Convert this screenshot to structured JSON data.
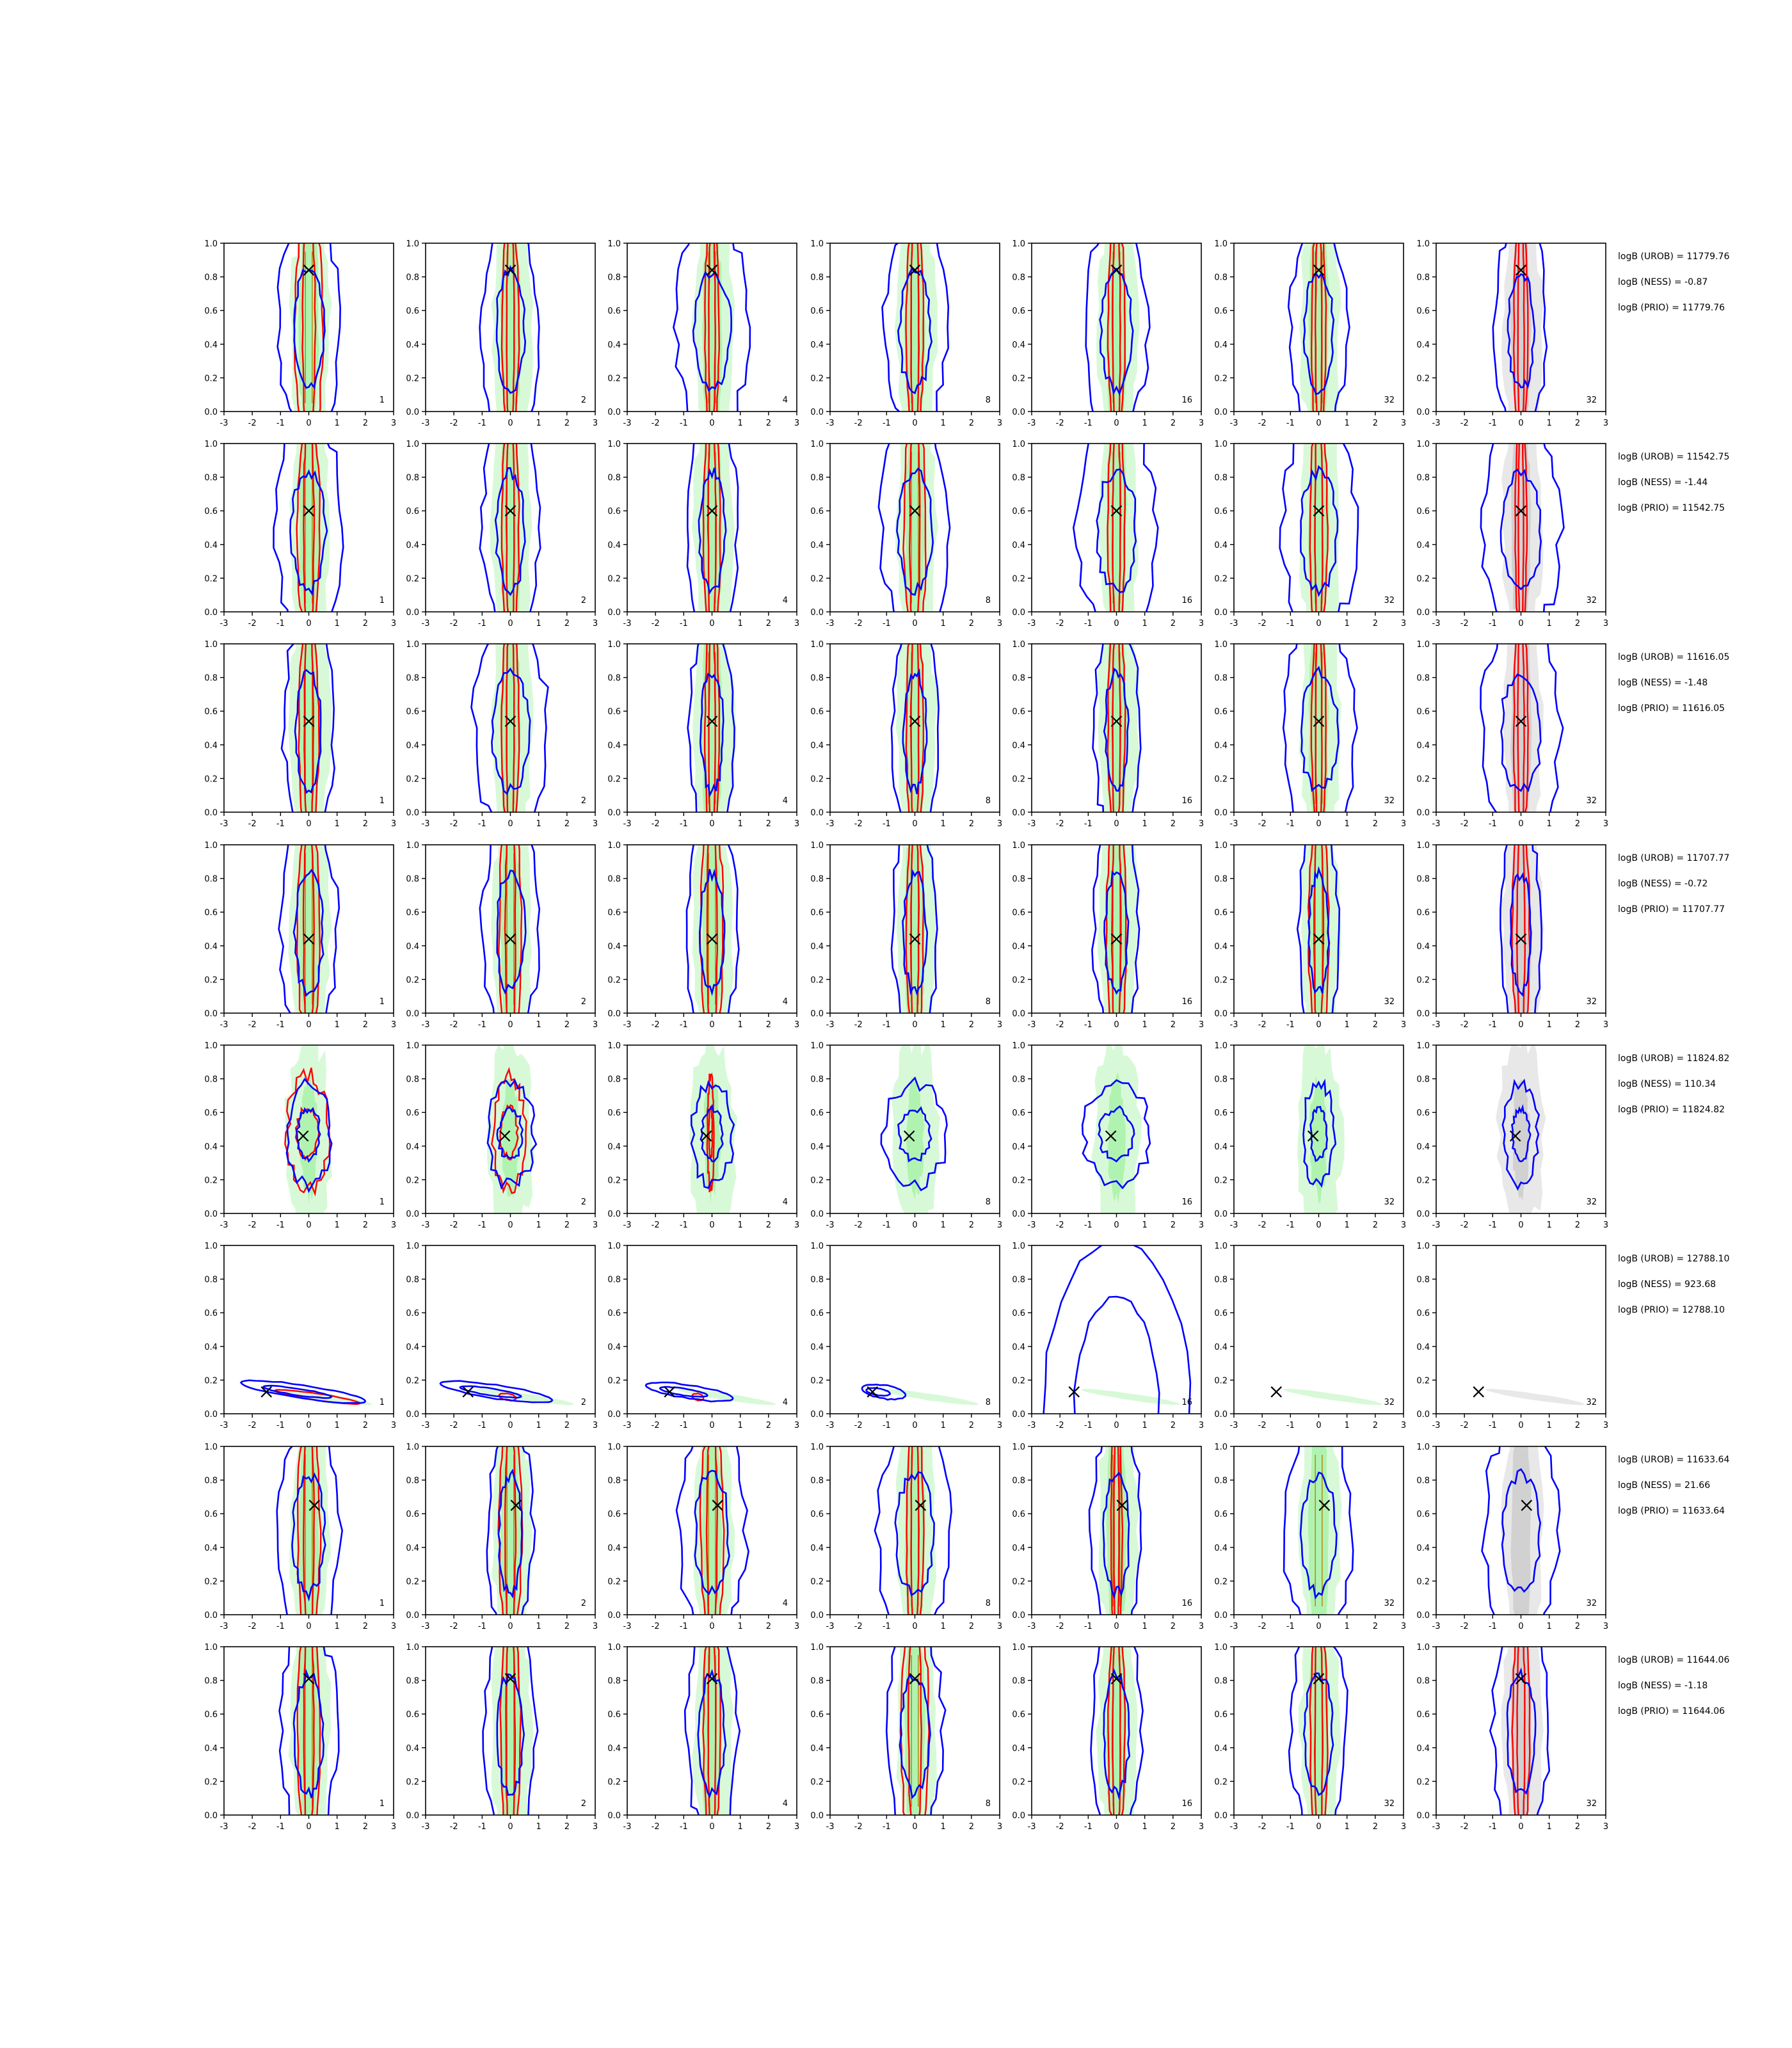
{
  "figure": {
    "colors": {
      "ness": "#0000ff",
      "urob": "#ff0000",
      "reference_fill": "#90ee90",
      "reference_line": "#b8860b",
      "prior_fill": "#bdbdbd",
      "marker": "#000000"
    },
    "column_labels": [
      "1",
      "2",
      "4",
      "8",
      "16",
      "32",
      "32"
    ],
    "last_column_fill": "prior_fill"
  },
  "chart_data": {
    "type": "contour-grid",
    "rows": 8,
    "columns": 7,
    "x_axis": {
      "lim": [
        -3,
        3
      ],
      "ticks": [
        "-3",
        "-2",
        "-1",
        "0",
        "1",
        "2",
        "3"
      ]
    },
    "y_axis": {
      "lim": [
        0.0,
        1.0
      ],
      "ticks": [
        "0.0",
        "0.2",
        "0.4",
        "0.6",
        "0.8",
        "1.0"
      ]
    },
    "panels": [
      {
        "true_value": {
          "x": 0.0,
          "y": 0.84
        },
        "annotations": [
          "logB (UROB) = 11779.76",
          "logB (NESS) = -0.87",
          "logB (PRIO) = 11779.76"
        ],
        "shape": "vertical",
        "blue_widths": [
          1.1,
          1.0,
          1.3,
          1.1,
          1.1,
          1.0,
          0.9
        ],
        "red_widths": [
          0.5,
          0.3,
          0.25,
          0.3,
          0.3,
          0.25,
          0.25
        ]
      },
      {
        "true_value": {
          "x": 0.0,
          "y": 0.6
        },
        "annotations": [
          "logB (UROB) = 11542.75",
          "logB (NESS) = -1.44",
          "logB (PRIO) = 11542.75"
        ],
        "shape": "vertical",
        "blue_widths": [
          1.2,
          1.0,
          0.9,
          1.2,
          1.4,
          1.3,
          1.4
        ],
        "red_widths": [
          0.4,
          0.3,
          0.3,
          0.4,
          0.3,
          0.3,
          0.2
        ]
      },
      {
        "true_value": {
          "x": 0.0,
          "y": 0.54
        },
        "annotations": [
          "logB (UROB) = 11616.05",
          "logB (NESS) = -1.48",
          "logB (PRIO) = 11616.05"
        ],
        "shape": "vertical",
        "blue_widths": [
          0.9,
          1.3,
          0.8,
          0.8,
          0.8,
          1.3,
          1.4
        ],
        "red_widths": [
          0.35,
          0.3,
          0.25,
          0.3,
          0.3,
          0.25,
          0.25
        ]
      },
      {
        "true_value": {
          "x": 0.0,
          "y": 0.44
        },
        "annotations": [
          "logB (UROB) = 11707.77",
          "logB (NESS) = -0.72",
          "logB (PRIO) = 11707.77"
        ],
        "shape": "vertical",
        "blue_widths": [
          1.0,
          1.0,
          0.9,
          0.8,
          0.8,
          0.7,
          0.7
        ],
        "red_widths": [
          0.4,
          0.4,
          0.4,
          0.3,
          0.35,
          0.35,
          0.3
        ]
      },
      {
        "true_value": {
          "x": -0.2,
          "y": 0.46
        },
        "annotations": [
          "logB (UROB) = 11824.82",
          "logB (NESS) = 110.34",
          "logB (PRIO) = 11824.82"
        ],
        "shape": "blob",
        "blue_widths": [
          1.4,
          1.5,
          1.3,
          2.0,
          2.1,
          1.0,
          1.1
        ],
        "red_widths": [
          1.3,
          1.0,
          0.2,
          0.0,
          0.0,
          0.0,
          0.0
        ]
      },
      {
        "true_value": {
          "x": -1.5,
          "y": 0.13
        },
        "annotations": [
          "logB (UROB) = 12788.10",
          "logB (NESS) = 923.68",
          "logB (PRIO) = 12788.10"
        ],
        "shape": "diagonal",
        "blue_widths": [
          2.0,
          1.8,
          1.4,
          0.7,
          2.8,
          0.0,
          0.0
        ],
        "red_widths": [
          1.5,
          0.3,
          0.2,
          0.0,
          0.0,
          0.0,
          0.0
        ]
      },
      {
        "true_value": {
          "x": 0.2,
          "y": 0.65
        },
        "annotations": [
          "logB (UROB) = 11633.64",
          "logB (NESS) = 21.66",
          "logB (PRIO) = 11633.64"
        ],
        "shape": "vertical",
        "blue_widths": [
          1.1,
          0.8,
          1.2,
          1.3,
          0.9,
          1.2,
          1.3
        ],
        "red_widths": [
          0.4,
          0.4,
          0.4,
          0.3,
          0.2,
          0.0,
          0.0
        ]
      },
      {
        "true_value": {
          "x": 0.0,
          "y": 0.81
        },
        "annotations": [
          "logB (UROB) = 11644.06",
          "logB (NESS) = -1.18",
          "logB (PRIO) = 11644.06"
        ],
        "shape": "vertical",
        "blue_widths": [
          1.0,
          0.9,
          0.9,
          1.0,
          0.9,
          1.0,
          1.0
        ],
        "red_widths": [
          0.4,
          0.35,
          0.3,
          0.5,
          0.3,
          0.3,
          0.3
        ]
      }
    ]
  }
}
